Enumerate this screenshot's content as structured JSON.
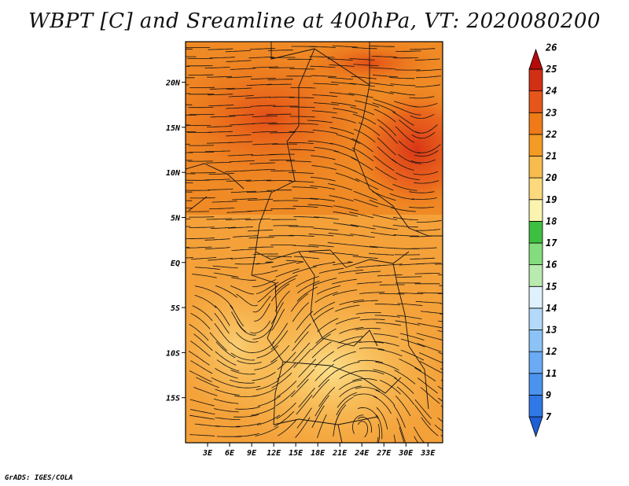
{
  "title": "WBPT [C] and Sreamline at 400hPa, VT: 2020080200",
  "credit": "GrADS: IGES/COLA",
  "map": {
    "lon_ticks": [
      "3E",
      "6E",
      "9E",
      "12E",
      "15E",
      "18E",
      "21E",
      "24E",
      "27E",
      "30E",
      "33E"
    ],
    "lat_ticks": [
      "20N",
      "15N",
      "10N",
      "5N",
      "EQ",
      "5S",
      "10S",
      "15S"
    ],
    "lon_range": [
      0,
      35
    ],
    "lat_range": [
      -20,
      24.5
    ]
  },
  "colorbar": {
    "labels": [
      "7",
      "9",
      "11",
      "12",
      "13",
      "14",
      "15",
      "16",
      "17",
      "18",
      "19",
      "20",
      "21",
      "22",
      "23",
      "24",
      "25",
      "26"
    ],
    "colors": [
      "#1f5fd6",
      "#2f78e6",
      "#4a93ef",
      "#6aabf3",
      "#8cc3f6",
      "#b3dafa",
      "#dff1fc",
      "#b9ebb0",
      "#85dc7c",
      "#3fbf3f",
      "#fbf3b0",
      "#fbd97c",
      "#f8bb4e",
      "#f39b25",
      "#ee7a18",
      "#e6561b",
      "#d23015",
      "#b50b0b"
    ]
  }
}
